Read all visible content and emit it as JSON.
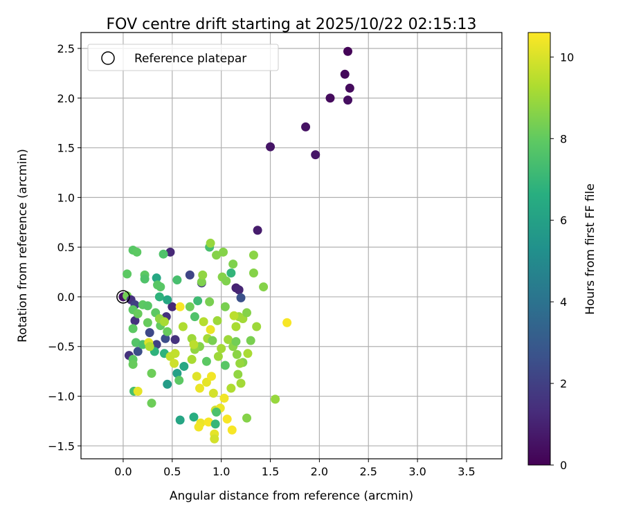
{
  "chart_data": {
    "type": "scatter",
    "title": "FOV centre drift starting at 2025/10/22 02:15:13",
    "xlabel": "Angular distance from reference (arcmin)",
    "ylabel": "Rotation from reference (arcmin)",
    "xlim": [
      -0.43,
      3.86
    ],
    "ylim": [
      -1.63,
      2.66
    ],
    "xticks": [
      0.0,
      0.5,
      1.0,
      1.5,
      2.0,
      2.5,
      3.0,
      3.5
    ],
    "xtick_labels": [
      "0.0",
      "0.5",
      "1.0",
      "1.5",
      "2.0",
      "2.5",
      "3.0",
      "3.5"
    ],
    "yticks": [
      -1.5,
      -1.0,
      -0.5,
      0.0,
      0.5,
      1.0,
      1.5,
      2.0,
      2.5
    ],
    "ytick_labels": [
      "−1.5",
      "−1.0",
      "−0.5",
      "0.0",
      "0.5",
      "1.0",
      "1.5",
      "2.0",
      "2.5"
    ],
    "grid": true,
    "legend": {
      "location": "top-left",
      "entries": [
        "Reference platepar"
      ]
    },
    "colorbar": {
      "label": "Hours from first FF file",
      "range": [
        0,
        10.6
      ],
      "ticks": [
        0,
        2,
        4,
        6,
        8,
        10
      ],
      "tick_labels": [
        "0",
        "2",
        "4",
        "6",
        "8",
        "10"
      ],
      "colormap": "viridis"
    },
    "reference_point": {
      "x": 0.0,
      "y": 0.0
    },
    "points": [
      {
        "x": 2.29,
        "y": 2.47,
        "h": 0.1
      },
      {
        "x": 2.26,
        "y": 2.24,
        "h": 0.2
      },
      {
        "x": 2.31,
        "y": 2.1,
        "h": 0.3
      },
      {
        "x": 2.11,
        "y": 2.0,
        "h": 0.3
      },
      {
        "x": 2.29,
        "y": 1.98,
        "h": 0.4
      },
      {
        "x": 1.86,
        "y": 1.71,
        "h": 0.5
      },
      {
        "x": 1.5,
        "y": 1.51,
        "h": 0.6
      },
      {
        "x": 1.96,
        "y": 1.43,
        "h": 0.6
      },
      {
        "x": 1.37,
        "y": 0.67,
        "h": 0.8
      },
      {
        "x": 0.48,
        "y": 0.45,
        "h": 1.2
      },
      {
        "x": 0.68,
        "y": 0.22,
        "h": 2.2
      },
      {
        "x": 0.8,
        "y": 0.14,
        "h": 1.8
      },
      {
        "x": 1.15,
        "y": 0.09,
        "h": 1.0
      },
      {
        "x": 1.18,
        "y": 0.07,
        "h": 1.1
      },
      {
        "x": 1.2,
        "y": -0.01,
        "h": 2.6
      },
      {
        "x": 0.0,
        "y": 0.0,
        "h": 0.5
      },
      {
        "x": 0.04,
        "y": 0.01,
        "h": 8.3
      },
      {
        "x": 0.08,
        "y": -0.03,
        "h": 1.5
      },
      {
        "x": 0.12,
        "y": -0.08,
        "h": 2.0
      },
      {
        "x": 0.12,
        "y": -0.24,
        "h": 1.5
      },
      {
        "x": 0.27,
        "y": -0.36,
        "h": 2.3
      },
      {
        "x": 0.43,
        "y": -0.42,
        "h": 2.5
      },
      {
        "x": 0.44,
        "y": -0.2,
        "h": 1.5
      },
      {
        "x": 0.5,
        "y": -0.1,
        "h": 1.2
      },
      {
        "x": 0.53,
        "y": -0.43,
        "h": 1.5
      },
      {
        "x": 0.06,
        "y": -0.59,
        "h": 1.5
      },
      {
        "x": 0.34,
        "y": -0.48,
        "h": 2.0
      },
      {
        "x": 0.15,
        "y": -0.55,
        "h": 2.5
      },
      {
        "x": 0.1,
        "y": 0.47,
        "h": 7.8
      },
      {
        "x": 0.14,
        "y": 0.45,
        "h": 7.9
      },
      {
        "x": 0.04,
        "y": 0.23,
        "h": 7.9
      },
      {
        "x": 0.22,
        "y": 0.22,
        "h": 7.9
      },
      {
        "x": 0.22,
        "y": 0.18,
        "h": 7.6
      },
      {
        "x": 0.34,
        "y": 0.19,
        "h": 6.3
      },
      {
        "x": 0.35,
        "y": 0.12,
        "h": 7.8
      },
      {
        "x": 0.38,
        "y": 0.1,
        "h": 7.8
      },
      {
        "x": 0.41,
        "y": 0.43,
        "h": 7.6
      },
      {
        "x": 0.55,
        "y": 0.17,
        "h": 7.4
      },
      {
        "x": 0.37,
        "y": 0.0,
        "h": 6.8
      },
      {
        "x": 0.45,
        "y": -0.03,
        "h": 6.3
      },
      {
        "x": 0.1,
        "y": -0.13,
        "h": 7.9
      },
      {
        "x": 0.15,
        "y": -0.17,
        "h": 8.1
      },
      {
        "x": 0.2,
        "y": -0.08,
        "h": 7.9
      },
      {
        "x": 0.25,
        "y": -0.09,
        "h": 7.8
      },
      {
        "x": 0.25,
        "y": -0.26,
        "h": 8.1
      },
      {
        "x": 0.33,
        "y": -0.16,
        "h": 7.9
      },
      {
        "x": 0.38,
        "y": -0.29,
        "h": 8.0
      },
      {
        "x": 0.45,
        "y": -0.35,
        "h": 8.1
      },
      {
        "x": 0.1,
        "y": -0.32,
        "h": 7.9
      },
      {
        "x": 0.13,
        "y": -0.46,
        "h": 7.7
      },
      {
        "x": 0.2,
        "y": -0.48,
        "h": 7.5
      },
      {
        "x": 0.32,
        "y": -0.55,
        "h": 6.8
      },
      {
        "x": 0.42,
        "y": -0.57,
        "h": 6.8
      },
      {
        "x": 0.1,
        "y": -0.63,
        "h": 7.9
      },
      {
        "x": 0.1,
        "y": -0.68,
        "h": 8.1
      },
      {
        "x": 0.29,
        "y": -0.77,
        "h": 8.2
      },
      {
        "x": 0.11,
        "y": -0.95,
        "h": 7.4
      },
      {
        "x": 0.15,
        "y": -0.95,
        "h": 10.2
      },
      {
        "x": 0.29,
        "y": -1.07,
        "h": 8.2
      },
      {
        "x": 0.48,
        "y": -0.6,
        "h": 9.6
      },
      {
        "x": 0.45,
        "y": -0.88,
        "h": 5.8
      },
      {
        "x": 0.55,
        "y": -0.77,
        "h": 6.0
      },
      {
        "x": 0.62,
        "y": -0.7,
        "h": 6.3
      },
      {
        "x": 0.57,
        "y": -0.84,
        "h": 7.9
      },
      {
        "x": 0.58,
        "y": -1.24,
        "h": 6.2
      },
      {
        "x": 0.72,
        "y": -1.21,
        "h": 6.6
      },
      {
        "x": 0.58,
        "y": -0.1,
        "h": 10.5
      },
      {
        "x": 0.61,
        "y": -0.3,
        "h": 9.3
      },
      {
        "x": 0.68,
        "y": -0.1,
        "h": 8.2
      },
      {
        "x": 0.73,
        "y": -0.2,
        "h": 7.6
      },
      {
        "x": 0.76,
        "y": -0.04,
        "h": 7.2
      },
      {
        "x": 0.8,
        "y": 0.15,
        "h": 8.5
      },
      {
        "x": 0.81,
        "y": 0.22,
        "h": 8.8
      },
      {
        "x": 0.88,
        "y": 0.5,
        "h": 7.4
      },
      {
        "x": 0.89,
        "y": 0.54,
        "h": 8.9
      },
      {
        "x": 0.95,
        "y": 0.42,
        "h": 8.6
      },
      {
        "x": 1.02,
        "y": 0.45,
        "h": 8.6
      },
      {
        "x": 1.01,
        "y": 0.2,
        "h": 8.6
      },
      {
        "x": 1.05,
        "y": 0.16,
        "h": 8.5
      },
      {
        "x": 1.1,
        "y": 0.24,
        "h": 6.9
      },
      {
        "x": 1.12,
        "y": 0.33,
        "h": 8.5
      },
      {
        "x": 1.33,
        "y": 0.42,
        "h": 8.7
      },
      {
        "x": 1.33,
        "y": 0.24,
        "h": 8.6
      },
      {
        "x": 1.43,
        "y": 0.1,
        "h": 8.6
      },
      {
        "x": 1.04,
        "y": -0.1,
        "h": 8.4
      },
      {
        "x": 0.82,
        "y": -0.25,
        "h": 9.4
      },
      {
        "x": 0.86,
        "y": -0.42,
        "h": 9.1
      },
      {
        "x": 0.89,
        "y": -0.33,
        "h": 10.3
      },
      {
        "x": 0.91,
        "y": -0.44,
        "h": 8.4
      },
      {
        "x": 0.96,
        "y": -0.24,
        "h": 9.0
      },
      {
        "x": 0.97,
        "y": -0.6,
        "h": 9.0
      },
      {
        "x": 1.07,
        "y": -0.43,
        "h": 9.0
      },
      {
        "x": 1.12,
        "y": -0.5,
        "h": 8.7
      },
      {
        "x": 1.15,
        "y": -0.3,
        "h": 9.2
      },
      {
        "x": 1.18,
        "y": -0.2,
        "h": 9.0
      },
      {
        "x": 1.22,
        "y": -0.22,
        "h": 9.1
      },
      {
        "x": 1.26,
        "y": -0.16,
        "h": 8.6
      },
      {
        "x": 1.3,
        "y": -0.44,
        "h": 8.4
      },
      {
        "x": 1.36,
        "y": -0.3,
        "h": 9.0
      },
      {
        "x": 1.22,
        "y": -0.66,
        "h": 8.6
      },
      {
        "x": 1.17,
        "y": -0.78,
        "h": 8.8
      },
      {
        "x": 1.2,
        "y": -0.87,
        "h": 9.1
      },
      {
        "x": 1.1,
        "y": -0.92,
        "h": 9.3
      },
      {
        "x": 1.04,
        "y": -0.69,
        "h": 7.8
      },
      {
        "x": 0.85,
        "y": -0.65,
        "h": 7.9
      },
      {
        "x": 0.78,
        "y": -0.5,
        "h": 8.6
      },
      {
        "x": 0.73,
        "y": -0.53,
        "h": 8.8
      },
      {
        "x": 0.7,
        "y": -0.63,
        "h": 9.2
      },
      {
        "x": 0.75,
        "y": -0.8,
        "h": 10.1
      },
      {
        "x": 0.78,
        "y": -0.92,
        "h": 10.3
      },
      {
        "x": 0.85,
        "y": -0.86,
        "h": 10.2
      },
      {
        "x": 0.9,
        "y": -0.8,
        "h": 10.4
      },
      {
        "x": 0.92,
        "y": -0.97,
        "h": 9.9
      },
      {
        "x": 0.94,
        "y": -1.14,
        "h": 9.8
      },
      {
        "x": 0.99,
        "y": -1.12,
        "h": 10.3
      },
      {
        "x": 1.03,
        "y": -1.02,
        "h": 10.4
      },
      {
        "x": 1.06,
        "y": -1.23,
        "h": 10.5
      },
      {
        "x": 1.11,
        "y": -1.34,
        "h": 10.5
      },
      {
        "x": 0.79,
        "y": -1.27,
        "h": 10.3
      },
      {
        "x": 0.77,
        "y": -1.31,
        "h": 10.4
      },
      {
        "x": 0.87,
        "y": -1.26,
        "h": 10.5
      },
      {
        "x": 0.93,
        "y": -1.38,
        "h": 10.2
      },
      {
        "x": 0.93,
        "y": -1.43,
        "h": 9.9
      },
      {
        "x": 0.94,
        "y": -1.28,
        "h": 7.0
      },
      {
        "x": 0.95,
        "y": -1.16,
        "h": 7.5
      },
      {
        "x": 1.26,
        "y": -1.22,
        "h": 8.6
      },
      {
        "x": 1.55,
        "y": -1.03,
        "h": 8.9
      },
      {
        "x": 1.67,
        "y": -0.26,
        "h": 10.5
      },
      {
        "x": 0.26,
        "y": -0.46,
        "h": 10.1
      },
      {
        "x": 0.27,
        "y": -0.5,
        "h": 9.3
      },
      {
        "x": 0.52,
        "y": -0.67,
        "h": 9.8
      },
      {
        "x": 0.53,
        "y": -0.57,
        "h": 9.6
      },
      {
        "x": 0.37,
        "y": -0.22,
        "h": 8.8
      },
      {
        "x": 0.42,
        "y": -0.25,
        "h": 9.2
      },
      {
        "x": 0.7,
        "y": -0.42,
        "h": 9.0
      },
      {
        "x": 0.72,
        "y": -0.48,
        "h": 9.5
      },
      {
        "x": 0.88,
        "y": -0.05,
        "h": 8.4
      },
      {
        "x": 1.0,
        "y": -0.52,
        "h": 9.1
      },
      {
        "x": 1.15,
        "y": -0.45,
        "h": 8.3
      },
      {
        "x": 1.16,
        "y": -0.58,
        "h": 8.7
      },
      {
        "x": 1.27,
        "y": -0.57,
        "h": 9.2
      },
      {
        "x": 1.19,
        "y": -0.67,
        "h": 8.9
      },
      {
        "x": 1.13,
        "y": -0.19,
        "h": 9.5
      }
    ]
  }
}
